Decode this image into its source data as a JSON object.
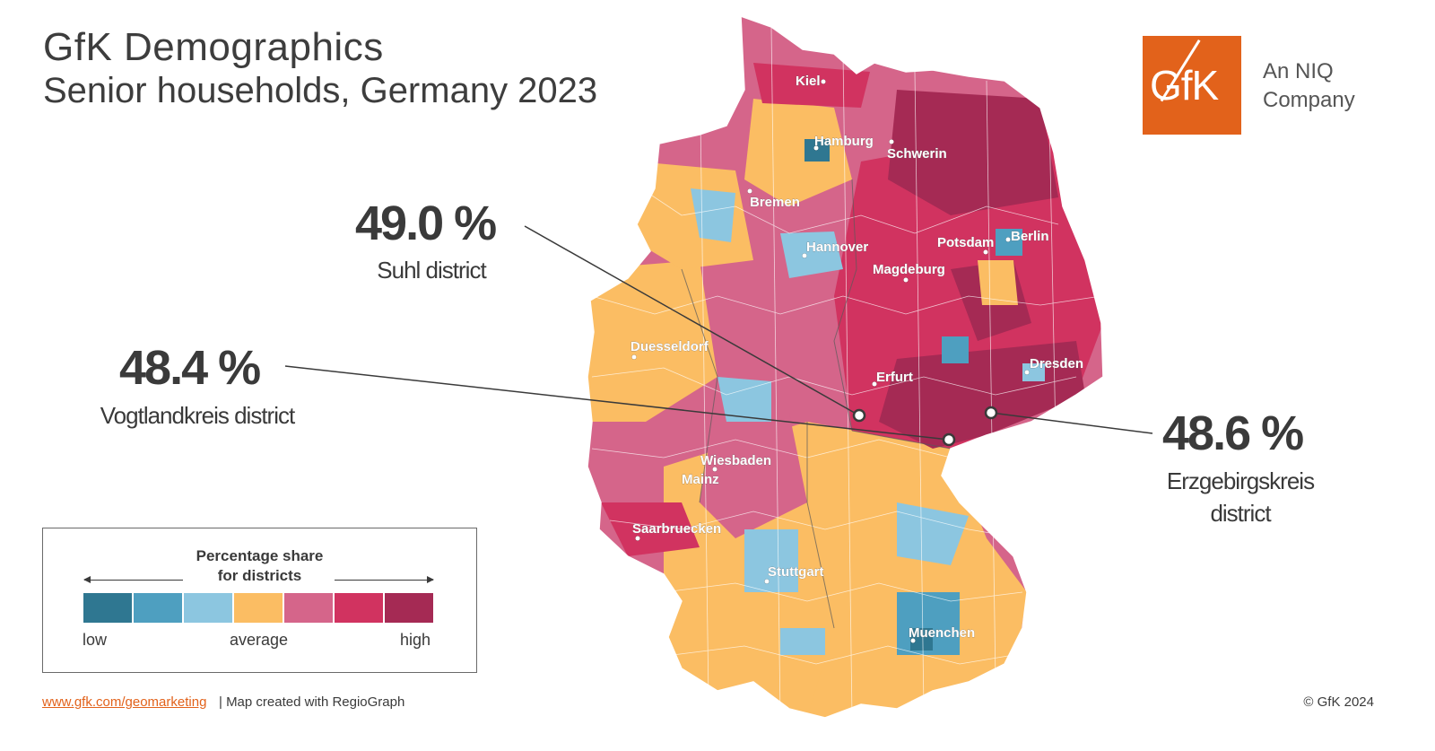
{
  "header": {
    "title": "GfK Demographics",
    "subtitle": "Senior households, Germany 2023"
  },
  "logo": {
    "mark": "GfK",
    "tagline_1": "An NIQ",
    "tagline_2": "Company"
  },
  "callouts": [
    {
      "value": "49.0 %",
      "label": "Suhl district"
    },
    {
      "value": "48.4 %",
      "label": "Vogtlandkreis district"
    },
    {
      "value": "48.6 %",
      "label_1": "Erzgebirgskreis",
      "label_2": "district"
    }
  ],
  "cities": [
    "Kiel",
    "Hamburg",
    "Schwerin",
    "Bremen",
    "Hannover",
    "Potsdam",
    "Berlin",
    "Magdeburg",
    "Duesseldorf",
    "Erfurt",
    "Dresden",
    "Wiesbaden",
    "Mainz",
    "Saarbruecken",
    "Stuttgart",
    "Muenchen"
  ],
  "legend": {
    "title_1": "Percentage share",
    "title_2": "for districts",
    "low": "low",
    "average": "average",
    "high": "high",
    "colors": [
      "#2f7791",
      "#4e9fc0",
      "#8cc6e0",
      "#fbbd63",
      "#d5658a",
      "#d13360",
      "#a52a54"
    ]
  },
  "footer": {
    "link": "www.gfk.com/geomarketing",
    "note": "| Map created with RegioGraph",
    "copyright": "© GfK 2024"
  }
}
